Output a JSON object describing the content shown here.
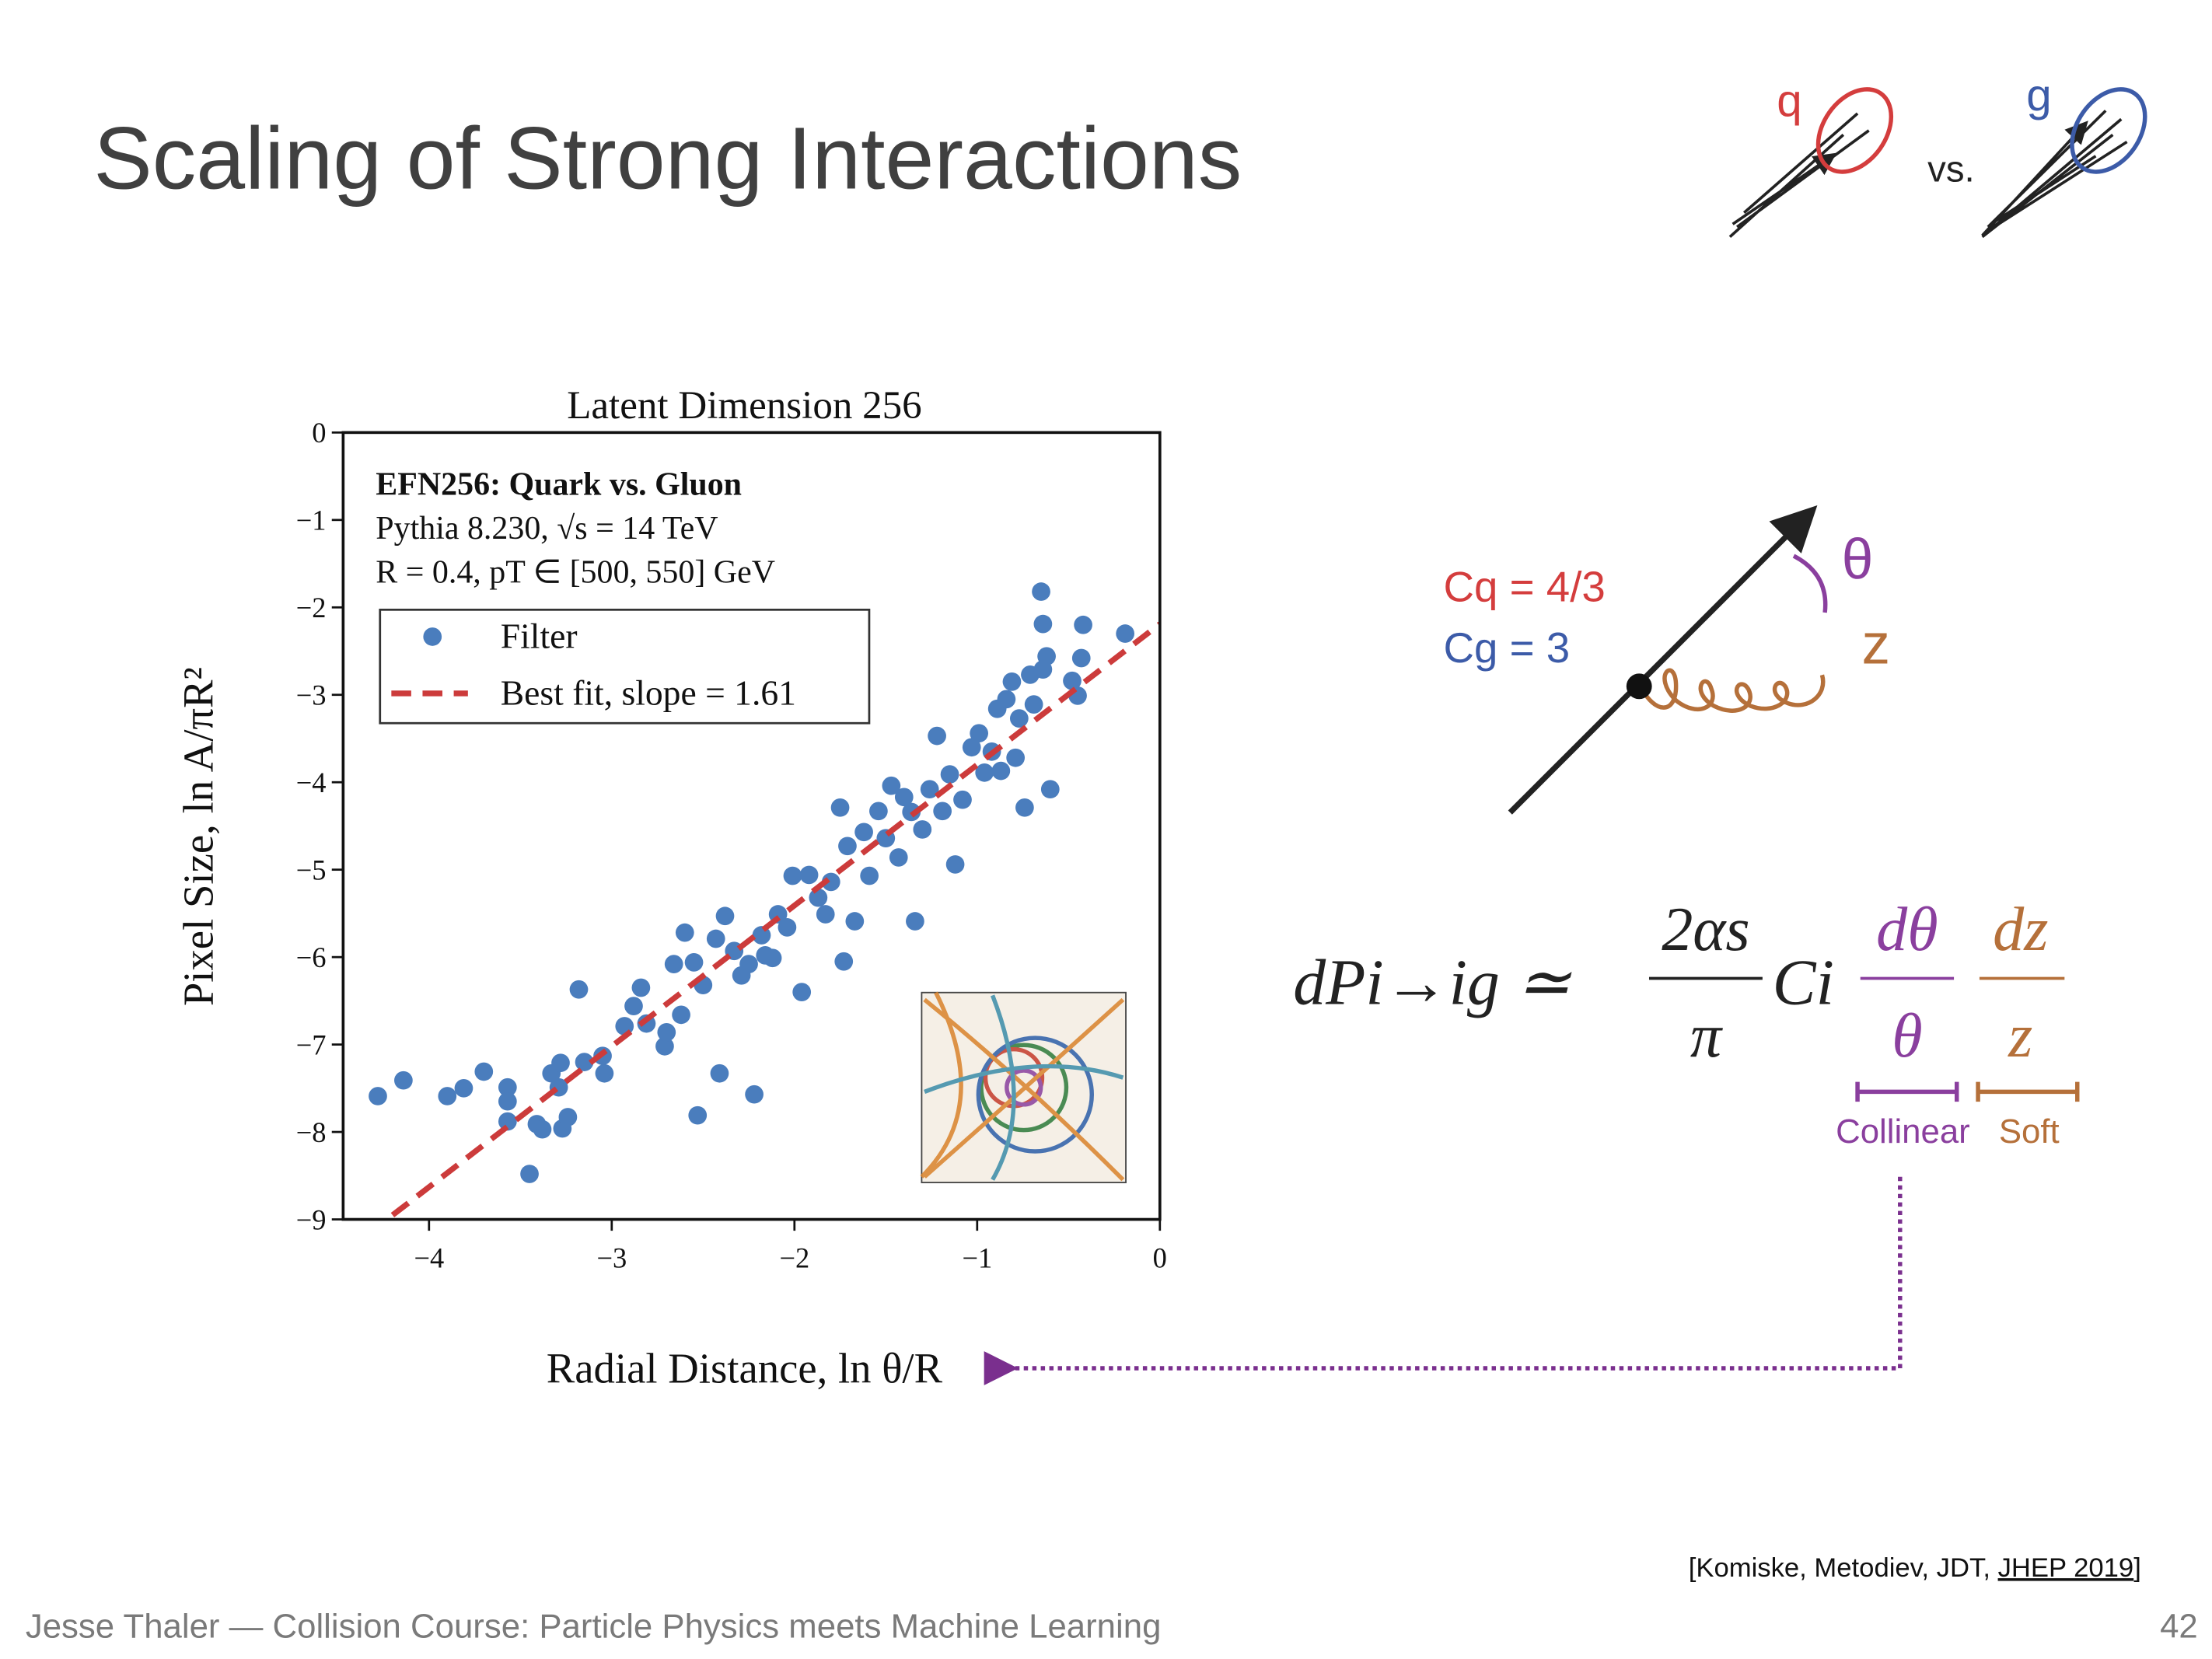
{
  "header": {
    "title": "Scaling of Strong Interactions",
    "quark": "q",
    "versus": "vs.",
    "gluon": "g"
  },
  "chart_data": {
    "type": "scatter",
    "title": "Latent Dimension 256",
    "x_label": "Radial Distance, ln θ/R",
    "y_label": "Pixel Size, ln A/πR²",
    "annotations": [
      "EFN256: Quark vs. Gluon",
      "Pythia 8.230, √s = 14 TeV",
      "R = 0.4, pT ∈ [500, 550] GeV"
    ],
    "xlim": [
      -4.47,
      0
    ],
    "ylim": [
      -9,
      0
    ],
    "xticks": [
      {
        "value": -4,
        "label": "−4"
      },
      {
        "value": -3,
        "label": "−3"
      },
      {
        "value": -2,
        "label": "−2"
      },
      {
        "value": -1,
        "label": "−1"
      },
      0
    ],
    "yticks": [
      0,
      {
        "value": -1,
        "label": "−1"
      },
      {
        "value": -2,
        "label": "−2"
      },
      {
        "value": -3,
        "label": "−3"
      },
      {
        "value": -4,
        "label": "−4"
      },
      {
        "value": -5,
        "label": "−5"
      },
      {
        "value": -6,
        "label": "−6"
      },
      {
        "value": -7,
        "label": "−7"
      },
      {
        "value": -8,
        "label": "−8"
      },
      {
        "value": -9,
        "label": "−9"
      }
    ],
    "legend": "upper left",
    "series": [
      {
        "name": "Filter",
        "color": "#4a7dbd",
        "x": [
          -4.28,
          -4.14,
          -3.9,
          -3.81,
          -3.7,
          -3.57,
          -3.57,
          -3.57,
          -3.45,
          -3.41,
          -3.38,
          -3.29,
          -3.27,
          -3.24,
          -3.33,
          -3.28,
          -3.18,
          -3.15,
          -3.04,
          -3.05,
          -2.93,
          -2.88,
          -2.84,
          -2.81,
          -2.71,
          -2.7,
          -2.66,
          -2.62,
          -2.6,
          -2.55,
          -2.53,
          -2.5,
          -2.43,
          -2.41,
          -2.38,
          -2.33,
          -2.29,
          -2.25,
          -2.22,
          -2.18,
          -2.16,
          -2.12,
          -2.09,
          -2.04,
          -2.01,
          -1.96,
          -1.92,
          -1.87,
          -1.83,
          -1.8,
          -1.75,
          -1.73,
          -1.71,
          -1.67,
          -1.62,
          -1.59,
          -1.54,
          -1.5,
          -1.47,
          -1.43,
          -1.4,
          -1.36,
          -1.34,
          -1.3,
          -1.26,
          -1.22,
          -1.19,
          -1.15,
          -1.12,
          -1.08,
          -1.03,
          -0.99,
          -0.96,
          -0.92,
          -0.89,
          -0.87,
          -0.84,
          -0.81,
          -0.79,
          -0.77,
          -0.74,
          -0.71,
          -0.69,
          -0.64,
          -0.65,
          -0.64,
          -0.62,
          -0.6,
          -0.42,
          -0.43,
          -0.45,
          -0.19,
          -0.48
        ],
        "values": [
          -7.59,
          -7.41,
          -7.59,
          -7.5,
          -7.31,
          -7.49,
          -7.65,
          -7.88,
          -8.48,
          -7.91,
          -7.97,
          -7.49,
          -7.96,
          -7.83,
          -7.33,
          -7.21,
          -6.37,
          -7.2,
          -7.33,
          -7.13,
          -6.79,
          -6.56,
          -6.35,
          -6.76,
          -7.02,
          -6.86,
          -6.08,
          -6.66,
          -5.72,
          -6.06,
          -7.81,
          -6.32,
          -5.79,
          -7.33,
          -5.53,
          -5.93,
          -6.21,
          -6.08,
          -7.57,
          -5.75,
          -5.98,
          -6.01,
          -5.51,
          -5.66,
          -5.07,
          -6.4,
          -5.06,
          -5.32,
          -5.51,
          -5.14,
          -4.29,
          -6.05,
          -4.73,
          -5.59,
          -4.57,
          -5.07,
          -4.33,
          -4.64,
          -4.04,
          -4.86,
          -4.17,
          -4.34,
          -5.59,
          -4.54,
          -4.08,
          -3.47,
          -4.33,
          -3.91,
          -4.94,
          -4.2,
          -3.6,
          -3.44,
          -3.89,
          -3.65,
          -3.16,
          -3.87,
          -3.05,
          -2.85,
          -3.72,
          -3.27,
          -4.29,
          -2.77,
          -3.11,
          -2.71,
          -1.82,
          -2.19,
          -2.56,
          -4.08,
          -2.2,
          -2.58,
          -3.01,
          -2.3,
          -2.84
        ]
      }
    ],
    "fit": {
      "name": "Best fit, slope = 1.61",
      "color": "#cc3b3b",
      "slope": 1.61,
      "intercept": -2.19
    }
  },
  "diagram": {
    "cq": "Cq = 4/3",
    "cg": "Cg = 3",
    "theta": "θ",
    "z": "z"
  },
  "equation": {
    "lhs": "dPi→ig ≃",
    "num1": "2αs",
    "den1": "π",
    "ci": "Ci",
    "num2": "dθ",
    "den2": "θ",
    "num3": "dz",
    "den3": "z",
    "collinear": "Collinear",
    "soft": "Soft"
  },
  "footer": {
    "citation_pre": "[Komiske, Metodiev, JDT, ",
    "citation_link": "JHEP 2019",
    "citation_post": "]",
    "text": "Jesse Thaler — Collision Course:  Particle Physics meets Machine Learning",
    "page": "42"
  }
}
